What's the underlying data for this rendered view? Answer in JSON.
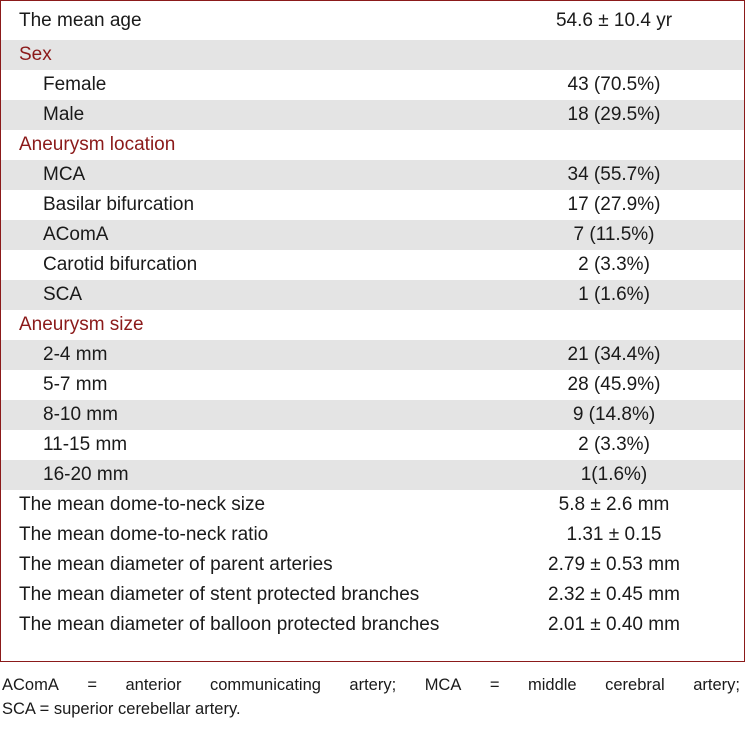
{
  "rows": [
    {
      "label": "The mean age",
      "value": "54.6 ± 10.4 yr",
      "kind": "main"
    },
    {
      "label": "Sex",
      "value": "",
      "kind": "head"
    },
    {
      "label": "Female",
      "value": "43 (70.5%)",
      "kind": "sub"
    },
    {
      "label": "Male",
      "value": "18 (29.5%)",
      "kind": "sub"
    },
    {
      "label": "Aneurysm location",
      "value": "",
      "kind": "head"
    },
    {
      "label": "MCA",
      "value": "34 (55.7%)",
      "kind": "sub"
    },
    {
      "label": "Basilar bifurcation",
      "value": "17 (27.9%)",
      "kind": "sub"
    },
    {
      "label": "AComA",
      "value": "7 (11.5%)",
      "kind": "sub"
    },
    {
      "label": "Carotid bifurcation",
      "value": "2 (3.3%)",
      "kind": "sub"
    },
    {
      "label": "SCA",
      "value": "1 (1.6%)",
      "kind": "sub"
    },
    {
      "label": "Aneurysm size",
      "value": "",
      "kind": "head"
    },
    {
      "label": "2-4 mm",
      "value": "21 (34.4%)",
      "kind": "sub"
    },
    {
      "label": "5-7 mm",
      "value": "28 (45.9%)",
      "kind": "sub"
    },
    {
      "label": "8-10 mm",
      "value": "9 (14.8%)",
      "kind": "sub"
    },
    {
      "label": "11-15 mm",
      "value": "2 (3.3%)",
      "kind": "sub"
    },
    {
      "label": "16-20 mm",
      "value": "1(1.6%)",
      "kind": "sub"
    },
    {
      "label": "The mean dome-to-neck size",
      "value": "5.8 ± 2.6 mm",
      "kind": "main"
    },
    {
      "label": "The mean dome-to-neck ratio",
      "value": "1.31 ± 0.15",
      "kind": "main"
    },
    {
      "label": "The mean diameter of parent arteries",
      "value": "2.79 ± 0.53 mm",
      "kind": "main"
    },
    {
      "label": "The mean diameter of stent protected branches",
      "value": "2.32 ± 0.45 mm",
      "kind": "main"
    },
    {
      "label": "The mean diameter of balloon protected branches",
      "value": "2.01 ± 0.40 mm",
      "kind": "main"
    }
  ],
  "footnote": {
    "line1_words": [
      "AComA",
      "=",
      "anterior",
      "communicating",
      "artery;",
      "MCA",
      "=",
      "middle",
      "cerebral",
      "artery;"
    ],
    "line2": "SCA = superior cerebellar artery."
  },
  "colors": {
    "accent": "#8b1a1a",
    "shade": "#e4e4e4"
  }
}
